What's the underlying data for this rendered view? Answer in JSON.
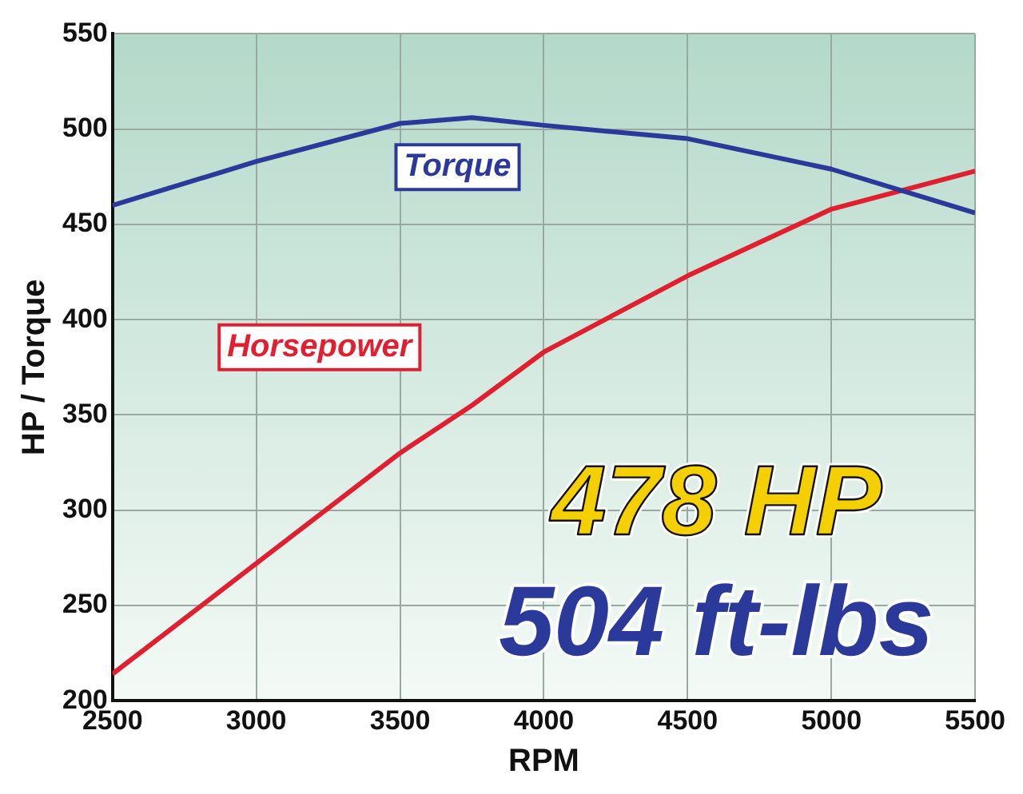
{
  "chart_data": {
    "type": "line",
    "xlabel": "RPM",
    "ylabel": "HP / Torque",
    "x": [
      2500,
      3000,
      3500,
      3750,
      4000,
      4500,
      5000,
      5500
    ],
    "series": [
      {
        "color": "#2b3a9a",
        "values": [
          460,
          483,
          503,
          506,
          502,
          495,
          479,
          456
        ]
      },
      {
        "color": "#e02030",
        "values": [
          214,
          272,
          330,
          355,
          383,
          423,
          458,
          478
        ]
      }
    ],
    "xlim": [
      2500,
      5500
    ],
    "xticks": [
      2500,
      3000,
      3500,
      4000,
      4500,
      5000,
      5500
    ],
    "ylim": [
      200,
      550
    ],
    "yticks": [
      200,
      250,
      300,
      350,
      400,
      450,
      500,
      550
    ],
    "grid": true,
    "legend": false,
    "marker": "none",
    "line_style": "solid",
    "annotations": [
      "Torque",
      "Horsepower",
      "478 HP",
      "504 ft-lbs"
    ]
  }
}
